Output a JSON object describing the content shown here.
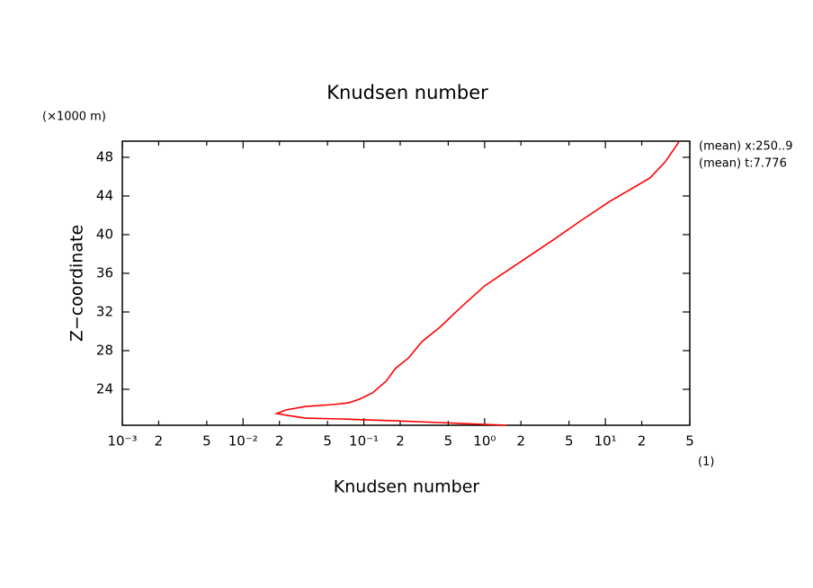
{
  "chart_data": {
    "type": "line",
    "title": "Knudsen number",
    "x_label": "Knudsen number",
    "x_unit": "(1)",
    "y_label": "Z−coordinate",
    "y_unit": "(×1000 m)",
    "annotations": [
      "(mean) x:250..9",
      "(mean) t:7.776"
    ],
    "x_log": true,
    "xlim": [
      0.001,
      50
    ],
    "ylim": [
      20.28,
      49.67
    ],
    "xticks": [
      {
        "value": 0.001,
        "label": "10⁻³"
      },
      {
        "value": 0.002,
        "label": "2"
      },
      {
        "value": 0.005,
        "label": "5"
      },
      {
        "value": 0.01,
        "label": "10⁻²"
      },
      {
        "value": 0.02,
        "label": "2"
      },
      {
        "value": 0.05,
        "label": "5"
      },
      {
        "value": 0.1,
        "label": "10⁻¹"
      },
      {
        "value": 0.2,
        "label": "2"
      },
      {
        "value": 0.5,
        "label": "5"
      },
      {
        "value": 1,
        "label": "10⁰"
      },
      {
        "value": 2,
        "label": "2"
      },
      {
        "value": 5,
        "label": "5"
      },
      {
        "value": 10,
        "label": "10¹"
      },
      {
        "value": 20,
        "label": "2"
      },
      {
        "value": 50,
        "label": "5"
      }
    ],
    "yticks": [
      24,
      28,
      32,
      36,
      40,
      44,
      48
    ],
    "series": [
      {
        "color": "#ff0000",
        "x": [
          1.53,
          1.0,
          0.426,
          0.182,
          0.1,
          0.065,
          0.033,
          0.0234,
          0.019,
          0.0226,
          0.033,
          0.055,
          0.075,
          0.092,
          0.118,
          0.153,
          0.182,
          0.235,
          0.303,
          0.426,
          0.6,
          1.0,
          1.67,
          3.6,
          6.5,
          10.9,
          23.4,
          31.3,
          40.6
        ],
        "values": [
          20.28,
          20.37,
          20.56,
          20.74,
          20.84,
          20.93,
          21.02,
          21.3,
          21.49,
          21.86,
          22.23,
          22.42,
          22.6,
          22.98,
          23.63,
          24.84,
          26.14,
          27.26,
          28.93,
          30.42,
          32.19,
          34.7,
          36.56,
          39.35,
          41.58,
          43.44,
          45.86,
          47.53,
          49.58
        ]
      }
    ]
  }
}
